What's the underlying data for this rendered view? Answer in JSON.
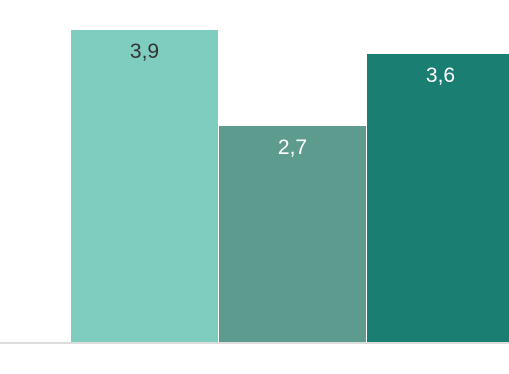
{
  "chart_data": {
    "type": "bar",
    "categories": [
      "",
      "",
      ""
    ],
    "values": [
      3.9,
      2.7,
      3.6
    ],
    "value_labels": [
      "3,9",
      "2,7",
      "3,6"
    ],
    "title": "",
    "xlabel": "",
    "ylabel": "",
    "ylim": [
      0,
      4.1
    ],
    "grid": false,
    "legend": "none",
    "colors": [
      "#7fcdbe",
      "#5e9b8f",
      "#1a7e73"
    ],
    "label_colors": [
      "#333333",
      "#ffffff",
      "#ffffff"
    ],
    "baseline_color": "#dddddd"
  }
}
